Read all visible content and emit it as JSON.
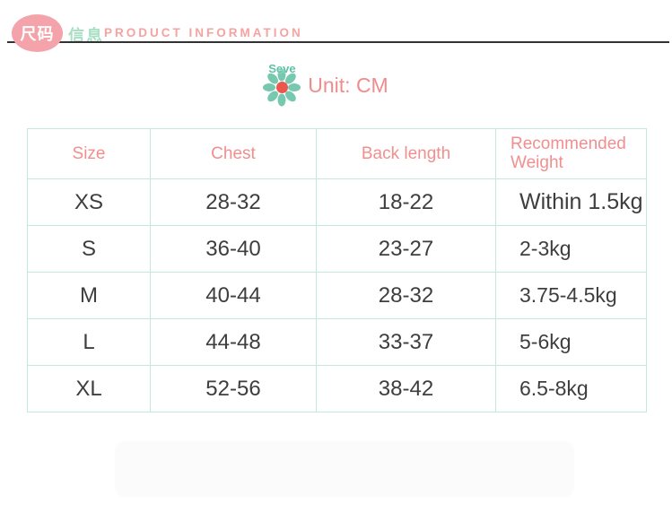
{
  "header": {
    "badge_text": "尺码",
    "subtitle_cn": "信息",
    "title_en": "PRODUCT INFORMATION"
  },
  "unit": {
    "label": "Unit: CM",
    "watermark_text": "Seve"
  },
  "colors": {
    "badge_pink": "#f5a3ab",
    "title_pink": "#f6a3a0",
    "mint_green": "#a6dfc4",
    "table_border": "#c2e9dc",
    "header_text_pink": "#f28e8e",
    "data_text": "#3e3e3e",
    "flower_petal": "#76c8af",
    "flower_center": "#e8584e",
    "rule_dark": "#323232"
  },
  "table": {
    "columns": [
      "Size",
      "Chest",
      "Back length",
      "Recommended Weight"
    ],
    "rows": [
      {
        "size": "XS",
        "chest": "28-32",
        "back_length": "18-22",
        "weight": "Within 1.5kg"
      },
      {
        "size": "S",
        "chest": "36-40",
        "back_length": "23-27",
        "weight": "2-3kg"
      },
      {
        "size": "M",
        "chest": "40-44",
        "back_length": "28-32",
        "weight": "3.75-4.5kg"
      },
      {
        "size": "L",
        "chest": "44-48",
        "back_length": "33-37",
        "weight": "5-6kg"
      },
      {
        "size": "XL",
        "chest": "52-56",
        "back_length": "38-42",
        "weight": "6.5-8kg"
      }
    ]
  }
}
